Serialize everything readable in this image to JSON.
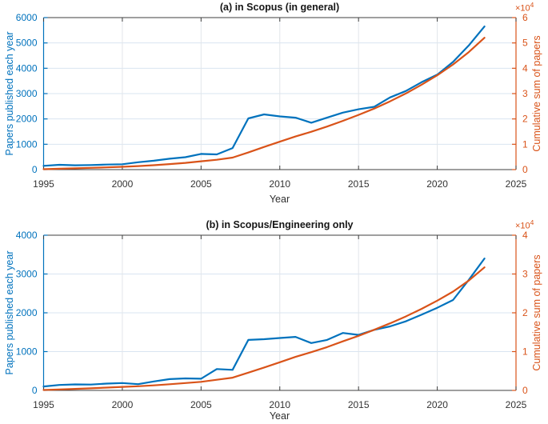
{
  "figure": {
    "background": "#ffffff",
    "colors": {
      "left_axis_blue": "#0072bd",
      "right_axis_orange": "#d95319",
      "axis_frame_gray": "#3f3f3f",
      "h_grid": "#d9e4f1",
      "v_grid": "#e2e6ea",
      "tick_text_gray": "#333333"
    }
  },
  "chart_data": [
    {
      "type": "line",
      "title": "(a) in Scopus (in general)",
      "xlabel": "Year",
      "ylabel_left": "Papers published each year",
      "ylabel_right": "Cumulative sum of papers",
      "right_axis_multiplier": {
        "base": "×10",
        "exponent": "4"
      },
      "grid": true,
      "legend": "none",
      "xlim": [
        1995,
        2025
      ],
      "xticks": [
        1995,
        2000,
        2005,
        2010,
        2015,
        2020,
        2025
      ],
      "ylim_left": [
        0,
        6000
      ],
      "yticks_left": [
        0,
        1000,
        2000,
        3000,
        4000,
        5000,
        6000
      ],
      "ylim_right": [
        0,
        60000
      ],
      "yticks_right": [
        0,
        10000,
        20000,
        30000,
        40000,
        50000,
        60000
      ],
      "yticks_right_labels": [
        "0",
        "1",
        "2",
        "3",
        "4",
        "5",
        "6"
      ],
      "x": [
        1995,
        1996,
        1997,
        1998,
        1999,
        2000,
        2001,
        2002,
        2003,
        2004,
        2005,
        2006,
        2007,
        2008,
        2009,
        2010,
        2011,
        2012,
        2013,
        2014,
        2015,
        2016,
        2017,
        2018,
        2019,
        2020,
        2021,
        2022,
        2023
      ],
      "series": [
        {
          "name": "Papers published each year",
          "axis": "left",
          "color": "#0072bd",
          "values": [
            150,
            190,
            170,
            180,
            200,
            210,
            290,
            350,
            430,
            490,
            620,
            600,
            850,
            2020,
            2180,
            2100,
            2050,
            1850,
            2050,
            2250,
            2380,
            2480,
            2850,
            3100,
            3450,
            3750,
            4250,
            4900,
            5650
          ]
        },
        {
          "name": "Cumulative sum of papers",
          "axis": "right",
          "color": "#d95319",
          "values": [
            150,
            340,
            510,
            690,
            890,
            1100,
            1390,
            1740,
            2170,
            2660,
            3280,
            3880,
            4730,
            6750,
            8930,
            11030,
            13080,
            14930,
            16980,
            19230,
            21610,
            24090,
            26940,
            30040,
            33490,
            37240,
            41490,
            46390,
            52040
          ]
        }
      ]
    },
    {
      "type": "line",
      "title": "(b) in Scopus/Engineering only",
      "xlabel": "Year",
      "ylabel_left": "Papers published each year",
      "ylabel_right": "Cumulative sum of papers",
      "right_axis_multiplier": {
        "base": "×10",
        "exponent": "4"
      },
      "grid": true,
      "legend": "none",
      "xlim": [
        1995,
        2025
      ],
      "xticks": [
        1995,
        2000,
        2005,
        2010,
        2015,
        2020,
        2025
      ],
      "ylim_left": [
        0,
        4000
      ],
      "yticks_left": [
        0,
        1000,
        2000,
        3000,
        4000
      ],
      "ylim_right": [
        0,
        40000
      ],
      "yticks_right": [
        0,
        10000,
        20000,
        30000,
        40000
      ],
      "yticks_right_labels": [
        "0",
        "1",
        "2",
        "3",
        "4"
      ],
      "x": [
        1995,
        1996,
        1997,
        1998,
        1999,
        2000,
        2001,
        2002,
        2003,
        2004,
        2005,
        2006,
        2007,
        2008,
        2009,
        2010,
        2011,
        2012,
        2013,
        2014,
        2015,
        2016,
        2017,
        2018,
        2019,
        2020,
        2021,
        2022,
        2023
      ],
      "series": [
        {
          "name": "Papers published each year",
          "axis": "left",
          "color": "#0072bd",
          "values": [
            100,
            140,
            155,
            150,
            175,
            190,
            160,
            230,
            290,
            310,
            300,
            550,
            530,
            1300,
            1320,
            1350,
            1380,
            1220,
            1300,
            1480,
            1430,
            1560,
            1650,
            1780,
            1950,
            2130,
            2330,
            2850,
            3400
          ]
        },
        {
          "name": "Cumulative sum of papers",
          "axis": "right",
          "color": "#d95319",
          "values": [
            100,
            240,
            395,
            545,
            720,
            910,
            1070,
            1300,
            1590,
            1900,
            2200,
            2750,
            3280,
            4580,
            5900,
            7250,
            8630,
            9850,
            11150,
            12630,
            14060,
            15620,
            17270,
            19050,
            21000,
            23130,
            25460,
            28310,
            31710
          ]
        }
      ]
    }
  ]
}
